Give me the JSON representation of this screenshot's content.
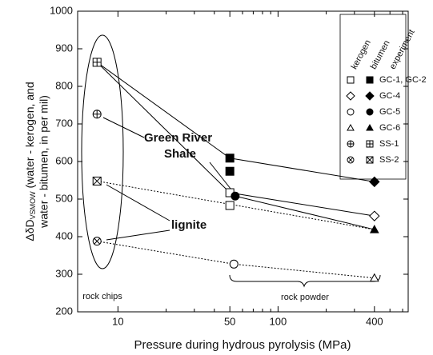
{
  "chart_data": {
    "type": "scatter",
    "xlabel": "Pressure during hydrous pyrolysis (MPa)",
    "ylabel_main": "ΔδD",
    "ylabel_sub": "VSMOW",
    "ylabel_rest": " (water - kerogen, and",
    "ylabel_line2": "water - bitumen, in per mil)",
    "xscale": "log",
    "xlim": [
      5.6,
      650
    ],
    "xticks": [
      10,
      50,
      100,
      400
    ],
    "xminorticks": [
      20,
      30,
      40,
      60,
      70,
      80,
      90,
      200,
      300,
      500,
      600
    ],
    "ylim": [
      200,
      1000
    ],
    "yticks": [
      200,
      300,
      400,
      500,
      600,
      700,
      800,
      900,
      1000
    ],
    "legend_columns": [
      "kerogen",
      "bitumen",
      "experiment"
    ],
    "series": [
      {
        "name": "GC-1, GC-2",
        "kerogen_marker": "square",
        "bitumen_marker": "square",
        "kerogen": {
          "x": [
            50,
            50
          ],
          "values": [
            517,
            483
          ]
        },
        "bitumen": {
          "x": [
            50,
            50
          ],
          "values": [
            609,
            574
          ]
        }
      },
      {
        "name": "GC-4",
        "kerogen_marker": "diamond",
        "bitumen_marker": "diamond",
        "kerogen": {
          "x": [
            400
          ],
          "values": [
            455
          ]
        },
        "bitumen": {
          "x": [
            400
          ],
          "values": [
            546
          ]
        }
      },
      {
        "name": "GC-5",
        "kerogen_marker": "circle",
        "bitumen_marker": "circle",
        "kerogen": {
          "x": [
            53
          ],
          "values": [
            327
          ]
        },
        "bitumen": {
          "x": [
            54
          ],
          "values": [
            508
          ]
        }
      },
      {
        "name": "GC-6",
        "kerogen_marker": "triangle",
        "bitumen_marker": "triangle",
        "kerogen": {
          "x": [
            400
          ],
          "values": [
            290
          ]
        },
        "bitumen": {
          "x": [
            400
          ],
          "values": [
            419
          ]
        }
      },
      {
        "name": "SS-1",
        "kerogen_marker": "circle-plus",
        "bitumen_marker": "square-plus",
        "kerogen": {
          "x": [
            7.4
          ],
          "values": [
            726
          ]
        },
        "bitumen": {
          "x": [
            7.4
          ],
          "values": [
            864
          ]
        }
      },
      {
        "name": "SS-2",
        "kerogen_marker": "circle-x",
        "bitumen_marker": "square-x",
        "kerogen": {
          "x": [
            7.4
          ],
          "values": [
            388
          ]
        },
        "bitumen": {
          "x": [
            7.4
          ],
          "values": [
            548
          ]
        }
      }
    ],
    "annotations": [
      "Green River",
      "Shale",
      "lignite",
      "rock chips",
      "rock powder"
    ]
  }
}
